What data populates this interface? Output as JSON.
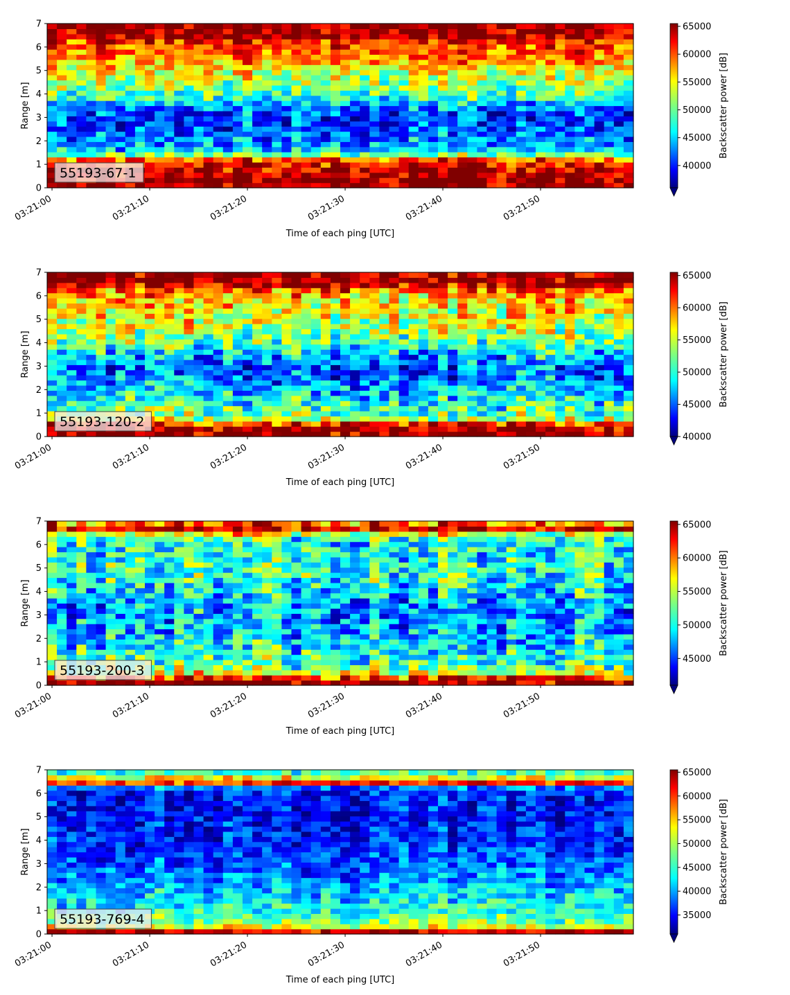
{
  "chart_data": [
    {
      "type": "heatmap",
      "panel_label": "55193-67-1",
      "xlabel": "Time of each ping [UTC]",
      "ylabel": "Range [m]",
      "x_ticks": [
        "03:21:00",
        "03:21:10",
        "03:21:20",
        "03:21:30",
        "03:21:40",
        "03:21:50"
      ],
      "y_ticks": [
        "0",
        "1",
        "2",
        "3",
        "4",
        "5",
        "6",
        "7"
      ],
      "xlim": [
        "03:20:59.5",
        "03:21:59.5"
      ],
      "ylim": [
        0,
        7
      ],
      "colorbar_label": "Backscatter power [dB]",
      "colorbar_ticks": [
        "40000",
        "45000",
        "50000",
        "55000",
        "60000",
        "65000"
      ],
      "clim": [
        36000,
        65500
      ],
      "colormap": "jet",
      "colorbar_extend": "min",
      "rows_description": "range bins",
      "x": [
        "03:21:00",
        "03:21:01",
        "03:21:02",
        "03:21:03",
        "03:21:04",
        "03:21:05",
        "03:21:06",
        "03:21:07",
        "03:21:08",
        "03:21:09",
        "03:21:10",
        "03:21:11",
        "03:21:12",
        "03:21:13",
        "03:21:14",
        "03:21:15",
        "03:21:16",
        "03:21:17",
        "03:21:18",
        "03:21:19",
        "03:21:20",
        "03:21:21",
        "03:21:22",
        "03:21:23",
        "03:21:24",
        "03:21:25",
        "03:21:26",
        "03:21:27",
        "03:21:28",
        "03:21:29",
        "03:21:30",
        "03:21:31",
        "03:21:32",
        "03:21:33",
        "03:21:34",
        "03:21:35",
        "03:21:36",
        "03:21:37",
        "03:21:38",
        "03:21:39",
        "03:21:40",
        "03:21:41",
        "03:21:42",
        "03:21:43",
        "03:21:44",
        "03:21:45",
        "03:21:46",
        "03:21:47",
        "03:21:48",
        "03:21:49",
        "03:21:50",
        "03:21:51",
        "03:21:52",
        "03:21:53",
        "03:21:54",
        "03:21:55",
        "03:21:56",
        "03:21:57",
        "03:21:58",
        "03:21:59"
      ],
      "range_profile": [
        [
          0.0,
          65500
        ],
        [
          0.3,
          65500
        ],
        [
          0.6,
          64500
        ],
        [
          0.9,
          63000
        ],
        [
          1.2,
          60000
        ],
        [
          1.5,
          48000
        ],
        [
          1.8,
          45000
        ],
        [
          2.1,
          44000
        ],
        [
          2.4,
          42500
        ],
        [
          2.7,
          42000
        ],
        [
          3.0,
          41500
        ],
        [
          3.3,
          42500
        ],
        [
          3.6,
          45000
        ],
        [
          3.9,
          49000
        ],
        [
          4.2,
          51000
        ],
        [
          4.5,
          52000
        ],
        [
          4.8,
          53500
        ],
        [
          5.1,
          55500
        ],
        [
          5.4,
          57500
        ],
        [
          5.7,
          59000
        ],
        [
          6.0,
          60500
        ],
        [
          6.3,
          61500
        ],
        [
          6.5,
          65500
        ],
        [
          7.0,
          65500
        ]
      ]
    },
    {
      "type": "heatmap",
      "panel_label": "55193-120-2",
      "xlabel": "Time of each ping [UTC]",
      "ylabel": "Range [m]",
      "x_ticks": [
        "03:21:00",
        "03:21:10",
        "03:21:20",
        "03:21:30",
        "03:21:40",
        "03:21:50"
      ],
      "y_ticks": [
        "0",
        "1",
        "2",
        "3",
        "4",
        "5",
        "6",
        "7"
      ],
      "xlim": [
        "03:20:59.5",
        "03:21:59.5"
      ],
      "ylim": [
        0,
        7
      ],
      "colorbar_label": "Backscatter power [dB]",
      "colorbar_ticks": [
        "40000",
        "45000",
        "50000",
        "55000",
        "60000",
        "65000"
      ],
      "clim": [
        40000,
        65500
      ],
      "colormap": "jet",
      "colorbar_extend": "min",
      "range_profile": [
        [
          0.0,
          65500
        ],
        [
          0.2,
          65500
        ],
        [
          0.5,
          64000
        ],
        [
          0.7,
          55000
        ],
        [
          1.0,
          52000
        ],
        [
          1.5,
          50000
        ],
        [
          2.0,
          48000
        ],
        [
          2.5,
          46500
        ],
        [
          3.0,
          45500
        ],
        [
          3.5,
          48000
        ],
        [
          4.0,
          52000
        ],
        [
          4.5,
          54000
        ],
        [
          5.0,
          55000
        ],
        [
          5.5,
          56500
        ],
        [
          6.0,
          57500
        ],
        [
          6.3,
          60000
        ],
        [
          6.5,
          65500
        ],
        [
          7.0,
          65500
        ]
      ]
    },
    {
      "type": "heatmap",
      "panel_label": "55193-200-3",
      "xlabel": "Time of each ping [UTC]",
      "ylabel": "Range [m]",
      "x_ticks": [
        "03:21:00",
        "03:21:10",
        "03:21:20",
        "03:21:30",
        "03:21:40",
        "03:21:50"
      ],
      "y_ticks": [
        "0",
        "1",
        "2",
        "3",
        "4",
        "5",
        "6",
        "7"
      ],
      "xlim": [
        "03:20:59.5",
        "03:21:59.5"
      ],
      "ylim": [
        0,
        7
      ],
      "colorbar_label": "Backscatter power [dB]",
      "colorbar_ticks": [
        "45000",
        "50000",
        "55000",
        "60000",
        "65000"
      ],
      "clim": [
        41000,
        65500
      ],
      "colormap": "jet",
      "colorbar_extend": "min",
      "range_profile": [
        [
          0.0,
          65500
        ],
        [
          0.2,
          65500
        ],
        [
          0.4,
          60000
        ],
        [
          0.6,
          54000
        ],
        [
          1.0,
          52000
        ],
        [
          1.5,
          50500
        ],
        [
          2.0,
          49500
        ],
        [
          2.5,
          48500
        ],
        [
          3.0,
          47500
        ],
        [
          3.5,
          48500
        ],
        [
          4.0,
          50000
        ],
        [
          4.5,
          51000
        ],
        [
          5.0,
          51500
        ],
        [
          5.5,
          51000
        ],
        [
          6.0,
          50500
        ],
        [
          6.4,
          52000
        ],
        [
          6.6,
          65500
        ],
        [
          6.9,
          60000
        ],
        [
          7.0,
          54000
        ]
      ]
    },
    {
      "type": "heatmap",
      "panel_label": "55193-769-4",
      "xlabel": "Time of each ping [UTC]",
      "ylabel": "Range [m]",
      "x_ticks": [
        "03:21:00",
        "03:21:10",
        "03:21:20",
        "03:21:30",
        "03:21:40",
        "03:21:50"
      ],
      "y_ticks": [
        "0",
        "1",
        "2",
        "3",
        "4",
        "5",
        "6",
        "7"
      ],
      "xlim": [
        "03:20:59.5",
        "03:21:59.5"
      ],
      "ylim": [
        0,
        7
      ],
      "colorbar_label": "Backscatter power [dB]",
      "colorbar_ticks": [
        "35000",
        "40000",
        "45000",
        "50000",
        "55000",
        "60000",
        "65000"
      ],
      "clim": [
        31000,
        65500
      ],
      "colormap": "jet",
      "colorbar_extend": "min",
      "range_profile": [
        [
          0.0,
          50000
        ],
        [
          0.1,
          62000
        ],
        [
          0.2,
          65500
        ],
        [
          0.3,
          52000
        ],
        [
          0.6,
          47000
        ],
        [
          1.0,
          44500
        ],
        [
          1.5,
          43000
        ],
        [
          2.0,
          41500
        ],
        [
          2.5,
          40000
        ],
        [
          3.0,
          38500
        ],
        [
          3.5,
          37500
        ],
        [
          4.0,
          36500
        ],
        [
          4.5,
          36000
        ],
        [
          5.0,
          35500
        ],
        [
          5.5,
          35500
        ],
        [
          6.0,
          36000
        ],
        [
          6.3,
          40000
        ],
        [
          6.5,
          65500
        ],
        [
          6.7,
          50000
        ],
        [
          7.0,
          44000
        ]
      ]
    }
  ]
}
